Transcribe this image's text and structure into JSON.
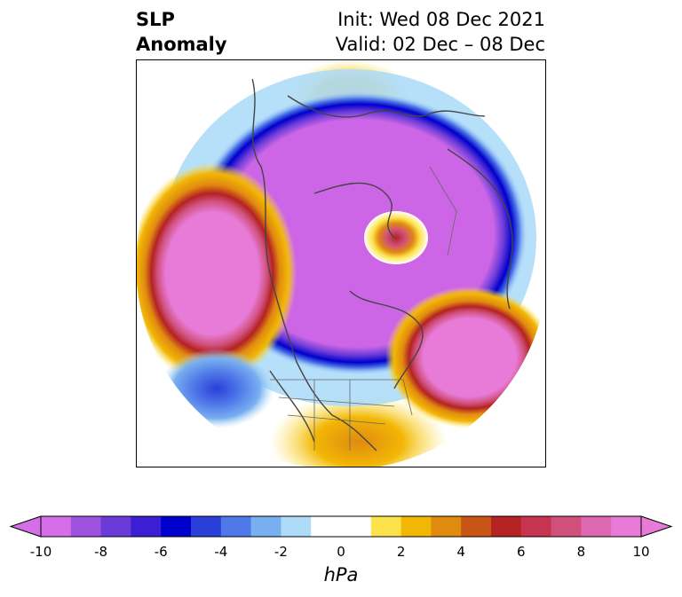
{
  "title": {
    "variable": "SLP",
    "kind": "Anomaly",
    "init": "Init: Wed 08 Dec 2021",
    "valid": "Valid: 02 Dec – 08 Dec"
  },
  "colorbar": {
    "units": "hPa",
    "tick_labels": [
      "-10",
      "-8",
      "-6",
      "-4",
      "-2",
      "0",
      "2",
      "4",
      "6",
      "8",
      "10"
    ],
    "colors": [
      "#d46fe8",
      "#9d52e0",
      "#6a3bd9",
      "#3c1fd4",
      "#0000cc",
      "#2a3fd8",
      "#4f78e8",
      "#78aff0",
      "#aedcf8",
      "#ffffff",
      "#ffffff",
      "#fde34b",
      "#f2b705",
      "#e08a10",
      "#c85516",
      "#b42222",
      "#c7344f",
      "#d0507c",
      "#dd67b0",
      "#e87bd8"
    ]
  },
  "colors": {
    "positive_max": "#e87bd8",
    "negative_max": "#cc66e6",
    "map_border": "#000000"
  }
}
